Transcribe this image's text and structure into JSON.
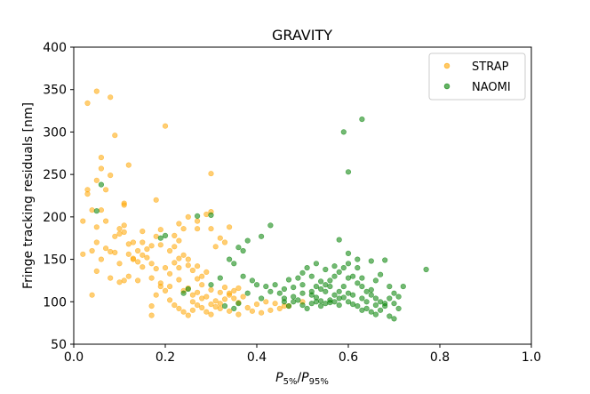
{
  "chart_data": {
    "type": "scatter",
    "title": "GRAVITY",
    "xlabel_base_left": "P",
    "xlabel_sub_left": "5%",
    "xlabel_sep": "/",
    "xlabel_base_right": "P",
    "xlabel_sub_right": "95%",
    "ylabel": "Fringe tracking residuals [nm]",
    "xlim": [
      0.0,
      1.0
    ],
    "ylim": [
      50,
      400
    ],
    "x_ticks": [
      0.0,
      0.2,
      0.4,
      0.6,
      0.8,
      1.0
    ],
    "x_tick_labels": [
      "0.0",
      "0.2",
      "0.4",
      "0.6",
      "0.8",
      "1.0"
    ],
    "y_ticks": [
      50,
      100,
      150,
      200,
      250,
      300,
      350,
      400
    ],
    "y_tick_labels": [
      "50",
      "100",
      "150",
      "200",
      "250",
      "300",
      "350",
      "400"
    ],
    "grid": false,
    "legend_position": "top-right",
    "series": [
      {
        "name": "STRAP",
        "color": "#FFA500",
        "points": [
          [
            0.05,
            348
          ],
          [
            0.03,
            334
          ],
          [
            0.08,
            341
          ],
          [
            0.09,
            296
          ],
          [
            0.2,
            307
          ],
          [
            0.06,
            270
          ],
          [
            0.12,
            261
          ],
          [
            0.06,
            257
          ],
          [
            0.08,
            249
          ],
          [
            0.3,
            251
          ],
          [
            0.03,
            232
          ],
          [
            0.07,
            232
          ],
          [
            0.05,
            243
          ],
          [
            0.03,
            227
          ],
          [
            0.11,
            216
          ],
          [
            0.11,
            214
          ],
          [
            0.18,
            220
          ],
          [
            0.04,
            208
          ],
          [
            0.06,
            208
          ],
          [
            0.02,
            195
          ],
          [
            0.05,
            188
          ],
          [
            0.07,
            195
          ],
          [
            0.1,
            186
          ],
          [
            0.1,
            180
          ],
          [
            0.09,
            177
          ],
          [
            0.11,
            190
          ],
          [
            0.11,
            182
          ],
          [
            0.13,
            170
          ],
          [
            0.15,
            170
          ],
          [
            0.14,
            160
          ],
          [
            0.17,
            166
          ],
          [
            0.18,
            177
          ],
          [
            0.19,
            167
          ],
          [
            0.22,
            178
          ],
          [
            0.23,
            192
          ],
          [
            0.24,
            186
          ],
          [
            0.27,
            195
          ],
          [
            0.3,
            206
          ],
          [
            0.29,
            203
          ],
          [
            0.25,
            200
          ],
          [
            0.27,
            186
          ],
          [
            0.3,
            186
          ],
          [
            0.32,
            175
          ],
          [
            0.33,
            170
          ],
          [
            0.34,
            188
          ],
          [
            0.07,
            163
          ],
          [
            0.08,
            159
          ],
          [
            0.09,
            158
          ],
          [
            0.12,
            156
          ],
          [
            0.13,
            151
          ],
          [
            0.14,
            147
          ],
          [
            0.15,
            141
          ],
          [
            0.16,
            152
          ],
          [
            0.17,
            145
          ],
          [
            0.18,
            139
          ],
          [
            0.2,
            140
          ],
          [
            0.21,
            133
          ],
          [
            0.22,
            146
          ],
          [
            0.23,
            151
          ],
          [
            0.24,
            155
          ],
          [
            0.25,
            143
          ],
          [
            0.26,
            137
          ],
          [
            0.27,
            142
          ],
          [
            0.28,
            130
          ],
          [
            0.29,
            135
          ],
          [
            0.02,
            156
          ],
          [
            0.04,
            160
          ],
          [
            0.05,
            170
          ],
          [
            0.06,
            150
          ],
          [
            0.1,
            145
          ],
          [
            0.12,
            130
          ],
          [
            0.14,
            125
          ],
          [
            0.17,
            128
          ],
          [
            0.19,
            122
          ],
          [
            0.21,
            118
          ],
          [
            0.23,
            126
          ],
          [
            0.24,
            113
          ],
          [
            0.25,
            116
          ],
          [
            0.26,
            108
          ],
          [
            0.27,
            111
          ],
          [
            0.28,
            120
          ],
          [
            0.29,
            106
          ],
          [
            0.3,
            114
          ],
          [
            0.31,
            101
          ],
          [
            0.32,
            111
          ],
          [
            0.33,
            117
          ],
          [
            0.34,
            108
          ],
          [
            0.35,
            104
          ],
          [
            0.36,
            99
          ],
          [
            0.37,
            106
          ],
          [
            0.38,
            93
          ],
          [
            0.4,
            97
          ],
          [
            0.42,
            100
          ],
          [
            0.44,
            98
          ],
          [
            0.46,
            95
          ],
          [
            0.21,
            102
          ],
          [
            0.22,
            96
          ],
          [
            0.23,
            92
          ],
          [
            0.24,
            88
          ],
          [
            0.25,
            84
          ],
          [
            0.26,
            90
          ],
          [
            0.27,
            96
          ],
          [
            0.28,
            93
          ],
          [
            0.29,
            88
          ],
          [
            0.3,
            85
          ],
          [
            0.31,
            94
          ],
          [
            0.32,
            98
          ],
          [
            0.33,
            103
          ],
          [
            0.34,
            110
          ],
          [
            0.35,
            113
          ],
          [
            0.36,
            116
          ],
          [
            0.18,
            108
          ],
          [
            0.17,
            95
          ],
          [
            0.17,
            84
          ],
          [
            0.2,
            113
          ],
          [
            0.19,
            118
          ],
          [
            0.23,
            140
          ],
          [
            0.22,
            165
          ],
          [
            0.21,
            160
          ],
          [
            0.16,
            162
          ],
          [
            0.15,
            155
          ],
          [
            0.13,
            150
          ],
          [
            0.12,
            168
          ],
          [
            0.1,
            123
          ],
          [
            0.08,
            128
          ],
          [
            0.05,
            136
          ],
          [
            0.04,
            108
          ],
          [
            0.11,
            125
          ],
          [
            0.26,
            100
          ],
          [
            0.28,
            104
          ],
          [
            0.3,
            97
          ],
          [
            0.32,
            92
          ],
          [
            0.34,
            89
          ],
          [
            0.36,
            85
          ],
          [
            0.39,
            89
          ],
          [
            0.41,
            87
          ],
          [
            0.43,
            90
          ],
          [
            0.45,
            92
          ],
          [
            0.47,
            95
          ],
          [
            0.5,
            100
          ],
          [
            0.27,
            127
          ],
          [
            0.25,
            150
          ],
          [
            0.23,
            172
          ],
          [
            0.31,
            165
          ],
          [
            0.19,
            185
          ],
          [
            0.15,
            183
          ]
        ]
      },
      {
        "name": "NAOMI",
        "color": "#008000",
        "points": [
          [
            0.63,
            315
          ],
          [
            0.59,
            300
          ],
          [
            0.6,
            253
          ],
          [
            0.06,
            238
          ],
          [
            0.05,
            207
          ],
          [
            0.27,
            201
          ],
          [
            0.3,
            202
          ],
          [
            0.43,
            190
          ],
          [
            0.41,
            177
          ],
          [
            0.38,
            172
          ],
          [
            0.36,
            164
          ],
          [
            0.37,
            160
          ],
          [
            0.2,
            178
          ],
          [
            0.19,
            175
          ],
          [
            0.58,
            173
          ],
          [
            0.6,
            157
          ],
          [
            0.62,
            150
          ],
          [
            0.65,
            148
          ],
          [
            0.68,
            149
          ],
          [
            0.77,
            138
          ],
          [
            0.34,
            150
          ],
          [
            0.35,
            145
          ],
          [
            0.37,
            130
          ],
          [
            0.39,
            125
          ],
          [
            0.4,
            120
          ],
          [
            0.42,
            118
          ],
          [
            0.46,
            115
          ],
          [
            0.48,
            117
          ],
          [
            0.5,
            110
          ],
          [
            0.52,
            108
          ],
          [
            0.53,
            105
          ],
          [
            0.54,
            115
          ],
          [
            0.55,
            120
          ],
          [
            0.56,
            125
          ],
          [
            0.57,
            130
          ],
          [
            0.58,
            135
          ],
          [
            0.59,
            140
          ],
          [
            0.6,
            128
          ],
          [
            0.61,
            130
          ],
          [
            0.62,
            122
          ],
          [
            0.63,
            118
          ],
          [
            0.64,
            112
          ],
          [
            0.65,
            108
          ],
          [
            0.66,
            104
          ],
          [
            0.67,
            100
          ],
          [
            0.68,
            98
          ],
          [
            0.69,
            104
          ],
          [
            0.7,
            110
          ],
          [
            0.71,
            106
          ],
          [
            0.72,
            118
          ],
          [
            0.45,
            110
          ],
          [
            0.46,
            100
          ],
          [
            0.47,
            95
          ],
          [
            0.48,
            100
          ],
          [
            0.49,
            102
          ],
          [
            0.5,
            96
          ],
          [
            0.51,
            92
          ],
          [
            0.52,
            98
          ],
          [
            0.53,
            100
          ],
          [
            0.54,
            95
          ],
          [
            0.55,
            98
          ],
          [
            0.56,
            102
          ],
          [
            0.57,
            108
          ],
          [
            0.58,
            112
          ],
          [
            0.59,
            105
          ],
          [
            0.6,
            100
          ],
          [
            0.61,
            97
          ],
          [
            0.62,
            95
          ],
          [
            0.63,
            90
          ],
          [
            0.64,
            92
          ],
          [
            0.65,
            88
          ],
          [
            0.66,
            85
          ],
          [
            0.67,
            90
          ],
          [
            0.68,
            95
          ],
          [
            0.69,
            83
          ],
          [
            0.7,
            80
          ],
          [
            0.52,
            130
          ],
          [
            0.51,
            140
          ],
          [
            0.53,
            145
          ],
          [
            0.55,
            138
          ],
          [
            0.57,
            142
          ],
          [
            0.56,
            118
          ],
          [
            0.54,
            124
          ],
          [
            0.49,
            128
          ],
          [
            0.5,
            134
          ],
          [
            0.47,
            126
          ],
          [
            0.44,
            120
          ],
          [
            0.43,
            112
          ],
          [
            0.41,
            104
          ],
          [
            0.38,
            110
          ],
          [
            0.36,
            98
          ],
          [
            0.35,
            92
          ],
          [
            0.58,
            96
          ],
          [
            0.61,
            108
          ],
          [
            0.63,
            104
          ],
          [
            0.65,
            114
          ],
          [
            0.66,
            125
          ],
          [
            0.67,
            132
          ],
          [
            0.62,
            140
          ],
          [
            0.6,
            145
          ],
          [
            0.59,
            118
          ],
          [
            0.57,
            100
          ],
          [
            0.55,
            112
          ],
          [
            0.53,
            118
          ],
          [
            0.48,
            106
          ],
          [
            0.46,
            104
          ],
          [
            0.5,
            120
          ],
          [
            0.63,
            128
          ],
          [
            0.64,
            100
          ],
          [
            0.66,
            96
          ],
          [
            0.69,
            118
          ],
          [
            0.7,
            98
          ],
          [
            0.71,
            92
          ],
          [
            0.56,
            99
          ],
          [
            0.58,
            104
          ],
          [
            0.6,
            110
          ],
          [
            0.52,
            112
          ],
          [
            0.54,
            101
          ],
          [
            0.3,
            120
          ],
          [
            0.32,
            128
          ],
          [
            0.24,
            110
          ],
          [
            0.25,
            115
          ],
          [
            0.33,
            95
          ]
        ]
      }
    ]
  }
}
